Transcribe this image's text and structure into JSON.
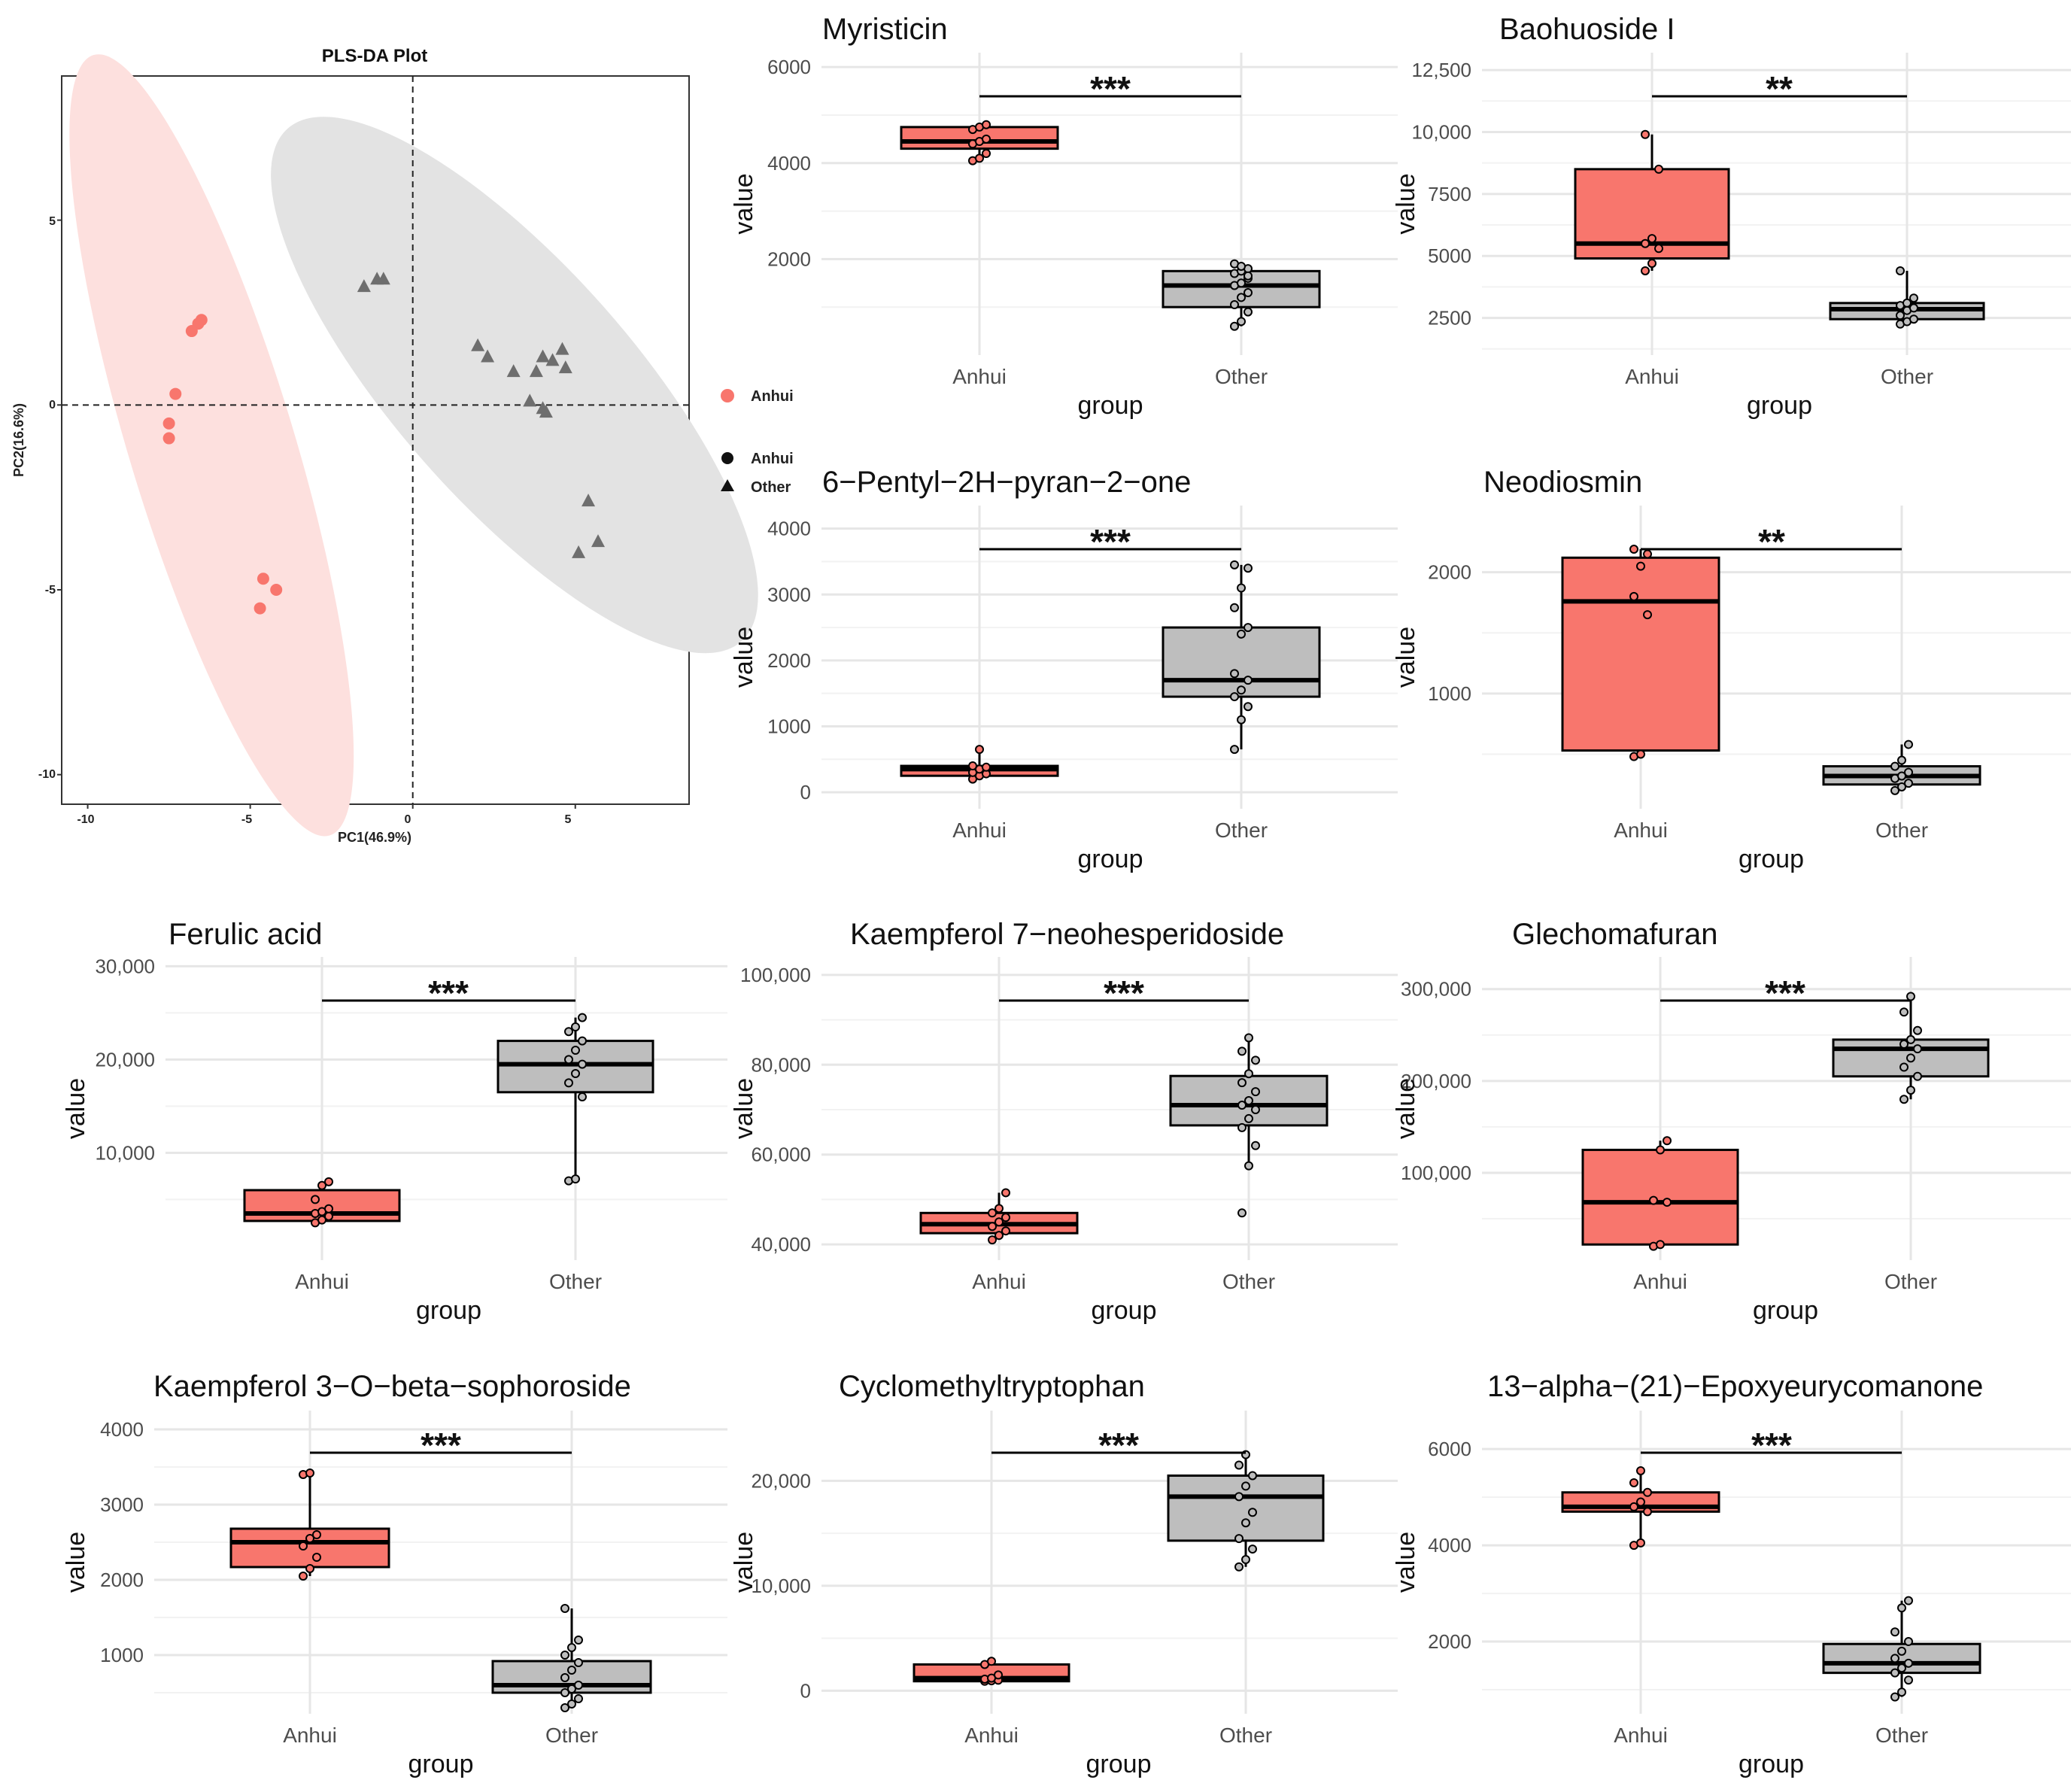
{
  "colors": {
    "anhui": "#f8766d",
    "other": "#bebebe",
    "ellipse_anhui": "#fde0de",
    "ellipse_other": "#e3e3e3"
  },
  "pca": {
    "title": "PLS-DA Plot",
    "xlabel": "PC1(46.9%)",
    "ylabel": "PC2(16.6%)",
    "xlim": [
      -10.8,
      8.5
    ],
    "ylim": [
      -10.8,
      8.9
    ],
    "xticks": [
      "-10",
      "-5",
      "0",
      "5"
    ],
    "yticks": [
      "5",
      "0",
      "-5",
      "-10"
    ],
    "legend_color": {
      "label": "Anhui"
    },
    "legend_shape": [
      {
        "label": "Anhui",
        "shape": "circle"
      },
      {
        "label": "Other",
        "shape": "triangle"
      }
    ],
    "anhui_points": [
      [
        -6.5,
        2.3
      ],
      [
        -6.6,
        2.2
      ],
      [
        -6.8,
        2.0
      ],
      [
        -7.3,
        0.3
      ],
      [
        -7.5,
        -0.5
      ],
      [
        -7.5,
        -0.9
      ],
      [
        -4.6,
        -4.7
      ],
      [
        -4.2,
        -5.0
      ],
      [
        -4.7,
        -5.5
      ]
    ],
    "other_points": [
      [
        -1.5,
        3.2
      ],
      [
        -1.1,
        3.4
      ],
      [
        -0.9,
        3.4
      ],
      [
        2.0,
        1.6
      ],
      [
        2.3,
        1.3
      ],
      [
        3.1,
        0.9
      ],
      [
        3.8,
        0.9
      ],
      [
        4.0,
        1.3
      ],
      [
        4.3,
        1.2
      ],
      [
        4.6,
        1.5
      ],
      [
        4.7,
        1.0
      ],
      [
        3.6,
        0.1
      ],
      [
        4.0,
        -0.1
      ],
      [
        4.1,
        -0.2
      ],
      [
        5.4,
        -2.6
      ],
      [
        5.1,
        -4.0
      ],
      [
        5.7,
        -3.7
      ]
    ]
  },
  "boxplots": [
    {
      "title": "Myristicin",
      "sig": "***",
      "xlabel": "group",
      "ylabel": "value",
      "categories": [
        "Anhui",
        "Other"
      ],
      "ylim": [
        0,
        6300
      ],
      "ticks": [
        "2000",
        "4000",
        "6000"
      ],
      "tick_values": [
        2000,
        4000,
        6000
      ],
      "boxes": [
        {
          "q1": 4300,
          "med": 4450,
          "q3": 4750,
          "lo": 4050,
          "hi": 4800,
          "pts": [
            4050,
            4100,
            4200,
            4400,
            4450,
            4500,
            4700,
            4750,
            4800
          ]
        },
        {
          "q1": 1000,
          "med": 1450,
          "q3": 1750,
          "lo": 600,
          "hi": 1900,
          "pts": [
            600,
            700,
            900,
            1050,
            1200,
            1300,
            1450,
            1500,
            1600,
            1700,
            1750,
            1800,
            1900,
            1850,
            1650
          ]
        }
      ]
    },
    {
      "title": "Baohuoside I",
      "sig": "**",
      "xlabel": "group",
      "ylabel": "value",
      "categories": [
        "Anhui",
        "Other"
      ],
      "ylim": [
        1000,
        13200
      ],
      "ticks": [
        "2500",
        "5000",
        "7500",
        "10,000",
        "12,500"
      ],
      "tick_values": [
        2500,
        5000,
        7500,
        10000,
        12500
      ],
      "boxes": [
        {
          "q1": 4900,
          "med": 5500,
          "q3": 8500,
          "lo": 4400,
          "hi": 9900,
          "pts": [
            4400,
            4700,
            5300,
            5500,
            5700,
            8500,
            9900
          ]
        },
        {
          "q1": 2450,
          "med": 2850,
          "q3": 3100,
          "lo": 2250,
          "hi": 4400,
          "pts": [
            2250,
            2350,
            2450,
            2600,
            2800,
            2900,
            3000,
            3100,
            3300,
            4400
          ]
        }
      ]
    },
    {
      "title": "6−Pentyl−2H−pyran−2−one",
      "sig": "***",
      "xlabel": "group",
      "ylabel": "value",
      "categories": [
        "Anhui",
        "Other"
      ],
      "ylim": [
        -250,
        4350
      ],
      "ticks": [
        "0",
        "1000",
        "2000",
        "3000",
        "4000"
      ],
      "tick_values": [
        0,
        1000,
        2000,
        3000,
        4000
      ],
      "boxes": [
        {
          "q1": 250,
          "med": 350,
          "q3": 400,
          "lo": 200,
          "hi": 650,
          "pts": [
            200,
            250,
            280,
            300,
            350,
            380,
            400,
            650
          ]
        },
        {
          "q1": 1450,
          "med": 1700,
          "q3": 2500,
          "lo": 650,
          "hi": 3450,
          "pts": [
            650,
            1100,
            1300,
            1450,
            1550,
            1700,
            1800,
            2400,
            2500,
            2800,
            3100,
            3400,
            3450
          ]
        }
      ]
    },
    {
      "title": "Neodiosmin",
      "sig": "**",
      "xlabel": "group",
      "ylabel": "value",
      "categories": [
        "Anhui",
        "Other"
      ],
      "ylim": [
        50,
        2550
      ],
      "ticks": [
        "1000",
        "2000"
      ],
      "tick_values": [
        1000,
        2000
      ],
      "boxes": [
        {
          "q1": 530,
          "med": 1760,
          "q3": 2120,
          "lo": 480,
          "hi": 2190,
          "pts": [
            480,
            500,
            1650,
            1800,
            2050,
            2150,
            2190
          ]
        },
        {
          "q1": 250,
          "med": 320,
          "q3": 400,
          "lo": 200,
          "hi": 580,
          "pts": [
            200,
            230,
            260,
            300,
            320,
            350,
            400,
            450,
            580
          ]
        }
      ]
    },
    {
      "title": "Ferulic acid",
      "sig": "***",
      "xlabel": "group",
      "ylabel": "value",
      "categories": [
        "Anhui",
        "Other"
      ],
      "ylim": [
        -1500,
        31000
      ],
      "ticks": [
        "10,000",
        "20,000",
        "30,000"
      ],
      "tick_values": [
        10000,
        20000,
        30000
      ],
      "boxes": [
        {
          "q1": 2700,
          "med": 3500,
          "q3": 6000,
          "lo": 2500,
          "hi": 6900,
          "pts": [
            2500,
            2800,
            3200,
            3500,
            3700,
            4000,
            5000,
            6500,
            6900
          ]
        },
        {
          "q1": 16500,
          "med": 19500,
          "q3": 22000,
          "lo": 7000,
          "hi": 24500,
          "pts": [
            7000,
            7200,
            16000,
            17500,
            18500,
            19500,
            20000,
            21000,
            22000,
            23000,
            23500,
            24500
          ]
        }
      ]
    },
    {
      "title": "Kaempferol 7−neohesperidoside",
      "sig": "***",
      "xlabel": "group",
      "ylabel": "value",
      "categories": [
        "Anhui",
        "Other"
      ],
      "ylim": [
        36500,
        104000
      ],
      "ticks": [
        "40,000",
        "60,000",
        "80,000",
        "100,000"
      ],
      "tick_values": [
        40000,
        60000,
        80000,
        100000
      ],
      "boxes": [
        {
          "q1": 42500,
          "med": 44500,
          "q3": 47000,
          "lo": 41000,
          "hi": 51500,
          "pts": [
            41000,
            42000,
            43000,
            44000,
            45000,
            46000,
            47000,
            48000,
            51500
          ]
        },
        {
          "q1": 66500,
          "med": 71000,
          "q3": 77500,
          "lo": 57500,
          "hi": 86000,
          "pts": [
            47000,
            57500,
            62000,
            66000,
            68000,
            70000,
            71000,
            72000,
            74000,
            76000,
            78000,
            81000,
            83000,
            86000
          ]
        }
      ]
    },
    {
      "title": "Glechomafuran",
      "sig": "***",
      "xlabel": "group",
      "ylabel": "value",
      "categories": [
        "Anhui",
        "Other"
      ],
      "ylim": [
        5000,
        335000
      ],
      "ticks": [
        "100,000",
        "200,000",
        "300,000"
      ],
      "tick_values": [
        100000,
        200000,
        300000
      ],
      "boxes": [
        {
          "q1": 22000,
          "med": 68000,
          "q3": 125000,
          "lo": 20000,
          "hi": 135000,
          "pts": [
            20000,
            22000,
            68000,
            70000,
            125000,
            135000
          ]
        },
        {
          "q1": 205000,
          "med": 235000,
          "q3": 245000,
          "lo": 180000,
          "hi": 292000,
          "pts": [
            180000,
            190000,
            205000,
            215000,
            225000,
            235000,
            240000,
            245000,
            255000,
            275000,
            292000
          ]
        }
      ]
    },
    {
      "title": "Kaempferol 3−O−beta−sophoroside",
      "sig": "***",
      "xlabel": "group",
      "ylabel": "value",
      "categories": [
        "Anhui",
        "Other"
      ],
      "ylim": [
        220,
        4250
      ],
      "ticks": [
        "1000",
        "2000",
        "3000",
        "4000"
      ],
      "tick_values": [
        1000,
        2000,
        3000,
        4000
      ],
      "boxes": [
        {
          "q1": 2170,
          "med": 2500,
          "q3": 2680,
          "lo": 2050,
          "hi": 3420,
          "pts": [
            2050,
            2150,
            2300,
            2450,
            2550,
            2600,
            3400,
            3420
          ]
        },
        {
          "q1": 500,
          "med": 600,
          "q3": 920,
          "lo": 300,
          "hi": 1620,
          "pts": [
            300,
            350,
            420,
            500,
            550,
            600,
            700,
            800,
            900,
            1000,
            1100,
            1200,
            1620
          ]
        }
      ]
    },
    {
      "title": "Cyclomethyltryptophan",
      "sig": "***",
      "xlabel": "group",
      "ylabel": "value",
      "categories": [
        "Anhui",
        "Other"
      ],
      "ylim": [
        -2200,
        26700
      ],
      "ticks": [
        "0",
        "10,000",
        "20,000"
      ],
      "tick_values": [
        0,
        10000,
        20000
      ],
      "boxes": [
        {
          "q1": 900,
          "med": 1200,
          "q3": 2500,
          "lo": 900,
          "hi": 2800,
          "pts": [
            900,
            950,
            1000,
            1100,
            1200,
            1500,
            2500,
            2800
          ]
        },
        {
          "q1": 14300,
          "med": 18500,
          "q3": 20500,
          "lo": 11800,
          "hi": 22500,
          "pts": [
            11800,
            12500,
            13500,
            14500,
            16000,
            17000,
            18500,
            19500,
            20500,
            21500,
            22500
          ]
        }
      ]
    },
    {
      "title": "13−alpha−(21)−Epoxyeurycomanone",
      "sig": "***",
      "xlabel": "group",
      "ylabel": "value",
      "categories": [
        "Anhui",
        "Other"
      ],
      "ylim": [
        500,
        6800
      ],
      "ticks": [
        "2000",
        "4000",
        "6000"
      ],
      "tick_values": [
        2000,
        4000,
        6000
      ],
      "boxes": [
        {
          "q1": 4700,
          "med": 4800,
          "q3": 5100,
          "lo": 4000,
          "hi": 5550,
          "pts": [
            4000,
            4050,
            4700,
            4800,
            4900,
            5100,
            5300,
            5550
          ]
        },
        {
          "q1": 1350,
          "med": 1550,
          "q3": 1950,
          "lo": 850,
          "hi": 2850,
          "pts": [
            850,
            950,
            1200,
            1350,
            1450,
            1550,
            1650,
            1800,
            2000,
            2200,
            2700,
            2850
          ]
        }
      ]
    }
  ]
}
